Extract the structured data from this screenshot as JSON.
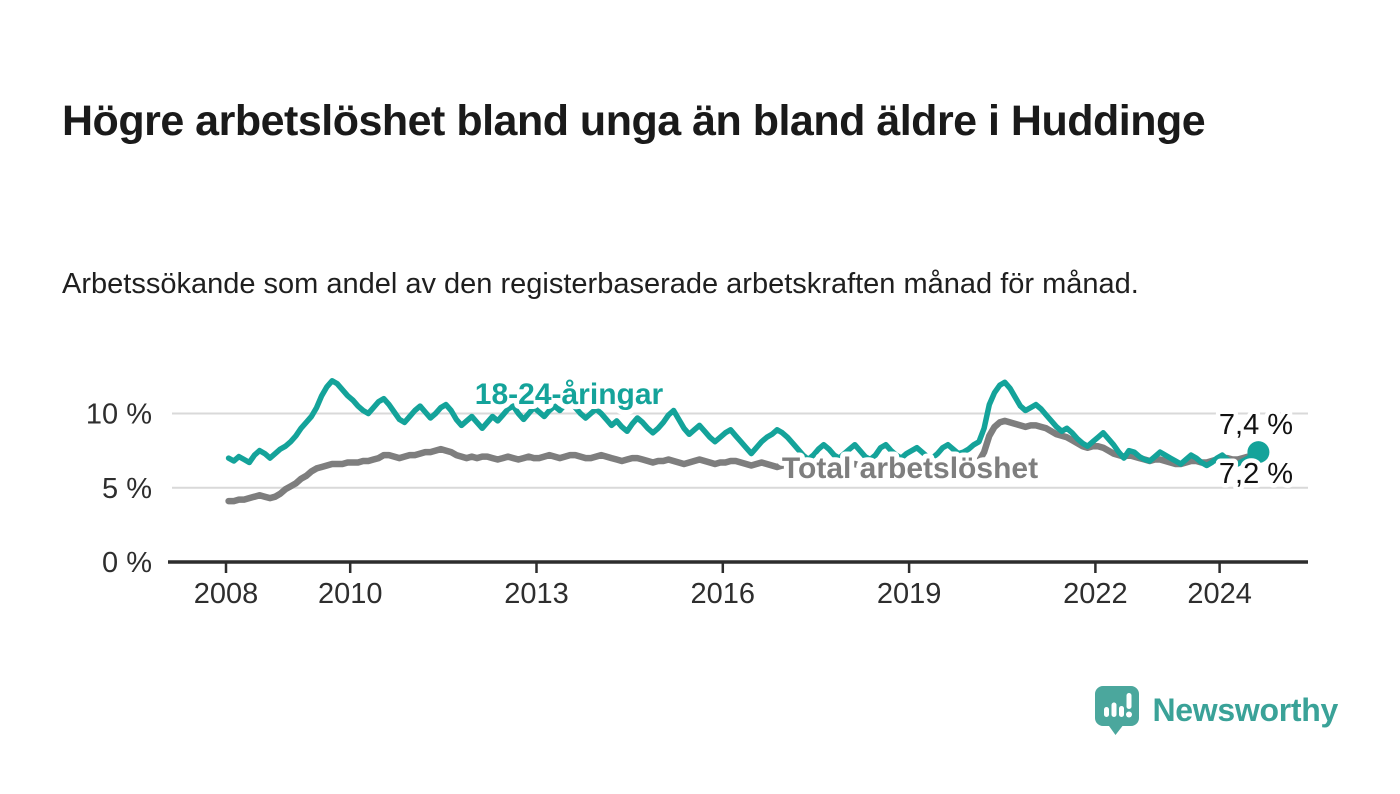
{
  "title": "Högre arbetslöshet bland unga än bland äldre i Huddinge",
  "subtitle": "Arbetssökande som andel av den registerbaserade arbetskraften månad för månad.",
  "brand": {
    "name": "Newsworthy",
    "logo_color": "#4ba79d",
    "text_color": "#3aa298"
  },
  "colors": {
    "young_line": "#14a39a",
    "total_line": "#7e7e7e",
    "axis": "#2d2d2d",
    "gridline": "#d9d9d9",
    "value_label": "#111111"
  },
  "chart_data": {
    "type": "line",
    "title": "Högre arbetslöshet bland unga än bland äldre i Huddinge",
    "subtitle": "Arbetssökande som andel av den registerbaserade arbetskraften månad för månad.",
    "x_unit": "month",
    "x_start": "2008-01",
    "x_end": "2024-08",
    "x_tick_years": [
      2008,
      2010,
      2013,
      2016,
      2019,
      2022,
      2024
    ],
    "y_tick_labels": [
      "0 %",
      "5 %",
      "10 %"
    ],
    "y_tick_values": [
      0,
      5,
      10
    ],
    "ylim": [
      0,
      12.6
    ],
    "grid": "horizontal",
    "legend_position": "inline-labels",
    "series": [
      {
        "name": "18-24-åringar",
        "color": "#14a39a",
        "end_label": "7,4 %",
        "end_value": 7.4,
        "values": [
          7.0,
          6.8,
          7.1,
          6.9,
          6.7,
          7.2,
          7.5,
          7.3,
          7.0,
          7.3,
          7.6,
          7.8,
          8.1,
          8.5,
          9.0,
          9.4,
          9.8,
          10.4,
          11.2,
          11.8,
          12.2,
          12.0,
          11.6,
          11.2,
          10.9,
          10.5,
          10.2,
          10.0,
          10.4,
          10.8,
          11.0,
          10.6,
          10.1,
          9.6,
          9.4,
          9.8,
          10.2,
          10.5,
          10.1,
          9.7,
          10.0,
          10.4,
          10.6,
          10.2,
          9.6,
          9.2,
          9.5,
          9.8,
          9.4,
          9.0,
          9.4,
          9.8,
          9.5,
          9.9,
          10.3,
          10.5,
          10.0,
          9.6,
          10.0,
          10.4,
          10.1,
          9.8,
          10.2,
          10.5,
          10.2,
          10.6,
          10.8,
          10.4,
          10.0,
          9.7,
          10.0,
          10.3,
          10.0,
          9.6,
          9.2,
          9.5,
          9.1,
          8.8,
          9.3,
          9.7,
          9.4,
          9.0,
          8.7,
          9.0,
          9.4,
          9.9,
          10.2,
          9.6,
          9.0,
          8.6,
          8.9,
          9.2,
          8.8,
          8.4,
          8.1,
          8.4,
          8.7,
          8.9,
          8.5,
          8.1,
          7.7,
          7.3,
          7.7,
          8.1,
          8.4,
          8.6,
          8.9,
          8.7,
          8.4,
          8.0,
          7.6,
          7.2,
          6.9,
          7.2,
          7.6,
          7.9,
          7.6,
          7.2,
          7.0,
          7.3,
          7.6,
          7.9,
          7.5,
          7.1,
          6.9,
          7.2,
          7.7,
          7.9,
          7.5,
          7.2,
          7.0,
          7.3,
          7.5,
          7.7,
          7.4,
          7.1,
          7.0,
          7.3,
          7.7,
          7.9,
          7.6,
          7.3,
          7.4,
          7.6,
          7.9,
          8.1,
          9.0,
          10.6,
          11.4,
          11.9,
          12.1,
          11.7,
          11.1,
          10.5,
          10.2,
          10.4,
          10.6,
          10.3,
          9.9,
          9.5,
          9.1,
          8.8,
          9.0,
          8.7,
          8.3,
          8.0,
          7.8,
          8.1,
          8.4,
          8.7,
          8.3,
          7.9,
          7.4,
          7.0,
          7.5,
          7.4,
          7.1,
          6.9,
          6.8,
          7.1,
          7.4,
          7.2,
          7.0,
          6.8,
          6.6,
          6.9,
          7.2,
          7.0,
          6.7,
          6.5,
          6.7,
          7.0,
          7.2,
          6.9,
          6.7,
          6.6,
          6.8,
          7.0,
          7.2,
          7.4
        ]
      },
      {
        "name": "Total arbetslöshet",
        "color": "#7e7e7e",
        "end_label": "7,2 %",
        "end_value": 7.2,
        "values": [
          4.1,
          4.1,
          4.2,
          4.2,
          4.3,
          4.4,
          4.5,
          4.4,
          4.3,
          4.4,
          4.6,
          4.9,
          5.1,
          5.3,
          5.6,
          5.8,
          6.1,
          6.3,
          6.4,
          6.5,
          6.6,
          6.6,
          6.6,
          6.7,
          6.7,
          6.7,
          6.8,
          6.8,
          6.9,
          7.0,
          7.2,
          7.2,
          7.1,
          7.0,
          7.1,
          7.2,
          7.2,
          7.3,
          7.4,
          7.4,
          7.5,
          7.6,
          7.5,
          7.4,
          7.2,
          7.1,
          7.0,
          7.1,
          7.0,
          7.1,
          7.1,
          7.0,
          6.9,
          7.0,
          7.1,
          7.0,
          6.9,
          7.0,
          7.1,
          7.0,
          7.0,
          7.1,
          7.2,
          7.1,
          7.0,
          7.1,
          7.2,
          7.2,
          7.1,
          7.0,
          7.0,
          7.1,
          7.2,
          7.1,
          7.0,
          6.9,
          6.8,
          6.9,
          7.0,
          7.0,
          6.9,
          6.8,
          6.7,
          6.8,
          6.8,
          6.9,
          6.8,
          6.7,
          6.6,
          6.7,
          6.8,
          6.9,
          6.8,
          6.7,
          6.6,
          6.7,
          6.7,
          6.8,
          6.8,
          6.7,
          6.6,
          6.5,
          6.6,
          6.7,
          6.6,
          6.5,
          6.4,
          6.5,
          6.5,
          6.6,
          6.5,
          6.4,
          6.3,
          6.4,
          6.5,
          6.6,
          6.5,
          6.4,
          6.4,
          6.5,
          6.5,
          6.6,
          6.5,
          6.4,
          6.3,
          6.3,
          6.4,
          6.5,
          6.4,
          6.3,
          6.2,
          6.3,
          6.4,
          6.5,
          6.4,
          6.3,
          6.3,
          6.4,
          6.5,
          6.6,
          6.5,
          6.4,
          6.5,
          6.6,
          6.7,
          6.8,
          7.4,
          8.5,
          9.1,
          9.4,
          9.5,
          9.4,
          9.3,
          9.2,
          9.1,
          9.2,
          9.2,
          9.1,
          9.0,
          8.8,
          8.6,
          8.5,
          8.4,
          8.2,
          8.0,
          7.8,
          7.7,
          7.8,
          7.8,
          7.7,
          7.5,
          7.3,
          7.2,
          7.1,
          7.2,
          7.1,
          7.0,
          6.9,
          6.8,
          6.9,
          6.9,
          6.8,
          6.7,
          6.6,
          6.6,
          6.7,
          6.8,
          6.8,
          6.7,
          6.7,
          6.8,
          6.9,
          7.0,
          7.0,
          6.9,
          6.9,
          7.0,
          7.1,
          7.1,
          7.2
        ]
      }
    ]
  }
}
